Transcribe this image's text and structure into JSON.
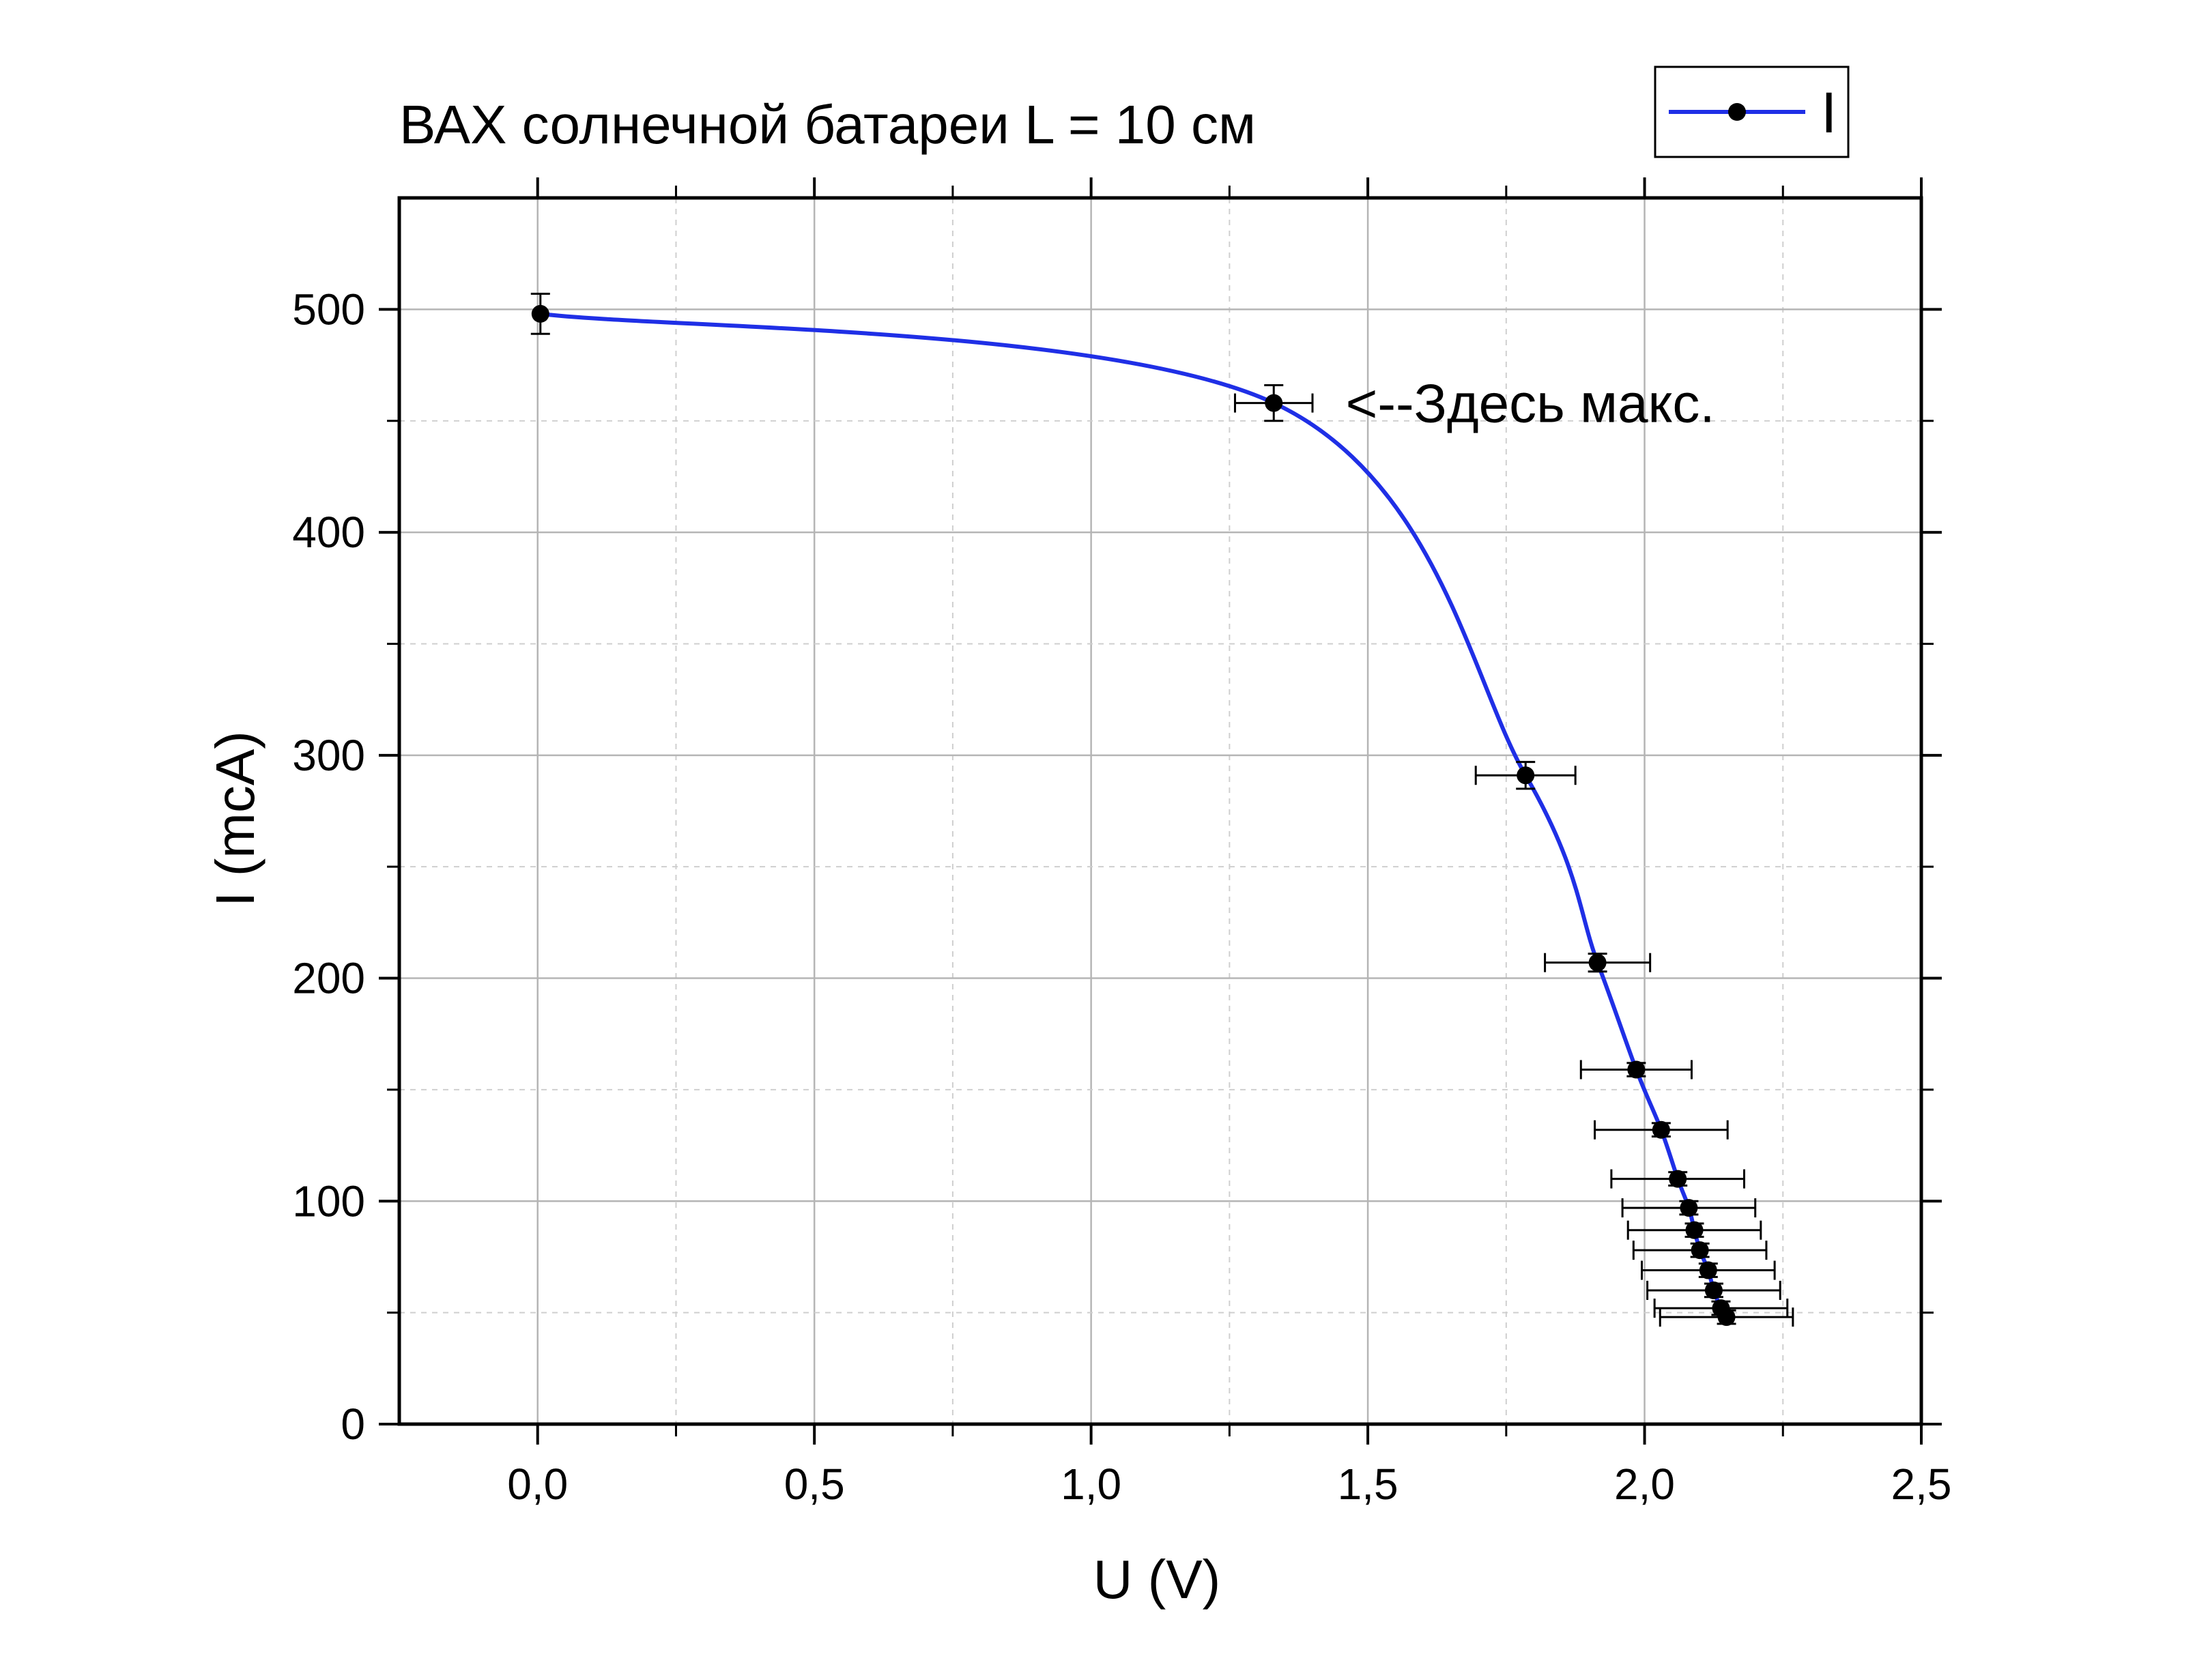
{
  "chart_data": {
    "type": "line",
    "title": "ВАХ солнечной батареи L = 10 см",
    "xlabel": "U (V)",
    "ylabel": "I (mcA)",
    "xlim": [
      -0.25,
      2.5
    ],
    "ylim": [
      0,
      550
    ],
    "x_ticks": [
      0.0,
      0.5,
      1.0,
      1.5,
      2.0,
      2.5
    ],
    "x_tick_labels": [
      "0,0",
      "0,5",
      "1,0",
      "1,5",
      "2,0",
      "2,5"
    ],
    "y_ticks": [
      0,
      100,
      200,
      300,
      400,
      500
    ],
    "y_tick_labels": [
      "0",
      "100",
      "200",
      "300",
      "400",
      "500"
    ],
    "grid": true,
    "legend_position": "top-right",
    "series": [
      {
        "name": "I",
        "color": "#1f2fe6",
        "marker_color": "#000000",
        "points": [
          {
            "x": 0.005,
            "y": 498,
            "xerr": 0.0,
            "yerr": 9
          },
          {
            "x": 1.33,
            "y": 458,
            "xerr": 0.07,
            "yerr": 8
          },
          {
            "x": 1.785,
            "y": 291,
            "xerr": 0.09,
            "yerr": 6
          },
          {
            "x": 1.915,
            "y": 207,
            "xerr": 0.095,
            "yerr": 4
          },
          {
            "x": 1.985,
            "y": 159,
            "xerr": 0.1,
            "yerr": 3
          },
          {
            "x": 2.03,
            "y": 132,
            "xerr": 0.12,
            "yerr": 3
          },
          {
            "x": 2.06,
            "y": 110,
            "xerr": 0.12,
            "yerr": 3
          },
          {
            "x": 2.08,
            "y": 97,
            "xerr": 0.12,
            "yerr": 3
          },
          {
            "x": 2.09,
            "y": 87,
            "xerr": 0.12,
            "yerr": 3
          },
          {
            "x": 2.1,
            "y": 78,
            "xerr": 0.12,
            "yerr": 3
          },
          {
            "x": 2.115,
            "y": 69,
            "xerr": 0.12,
            "yerr": 3
          },
          {
            "x": 2.125,
            "y": 60,
            "xerr": 0.12,
            "yerr": 3
          },
          {
            "x": 2.138,
            "y": 52,
            "xerr": 0.12,
            "yerr": 3
          },
          {
            "x": 2.148,
            "y": 48,
            "xerr": 0.12,
            "yerr": 3
          }
        ]
      }
    ],
    "annotations": [
      {
        "text": "<--Здесь макс.",
        "x": 1.46,
        "y": 458
      }
    ]
  }
}
